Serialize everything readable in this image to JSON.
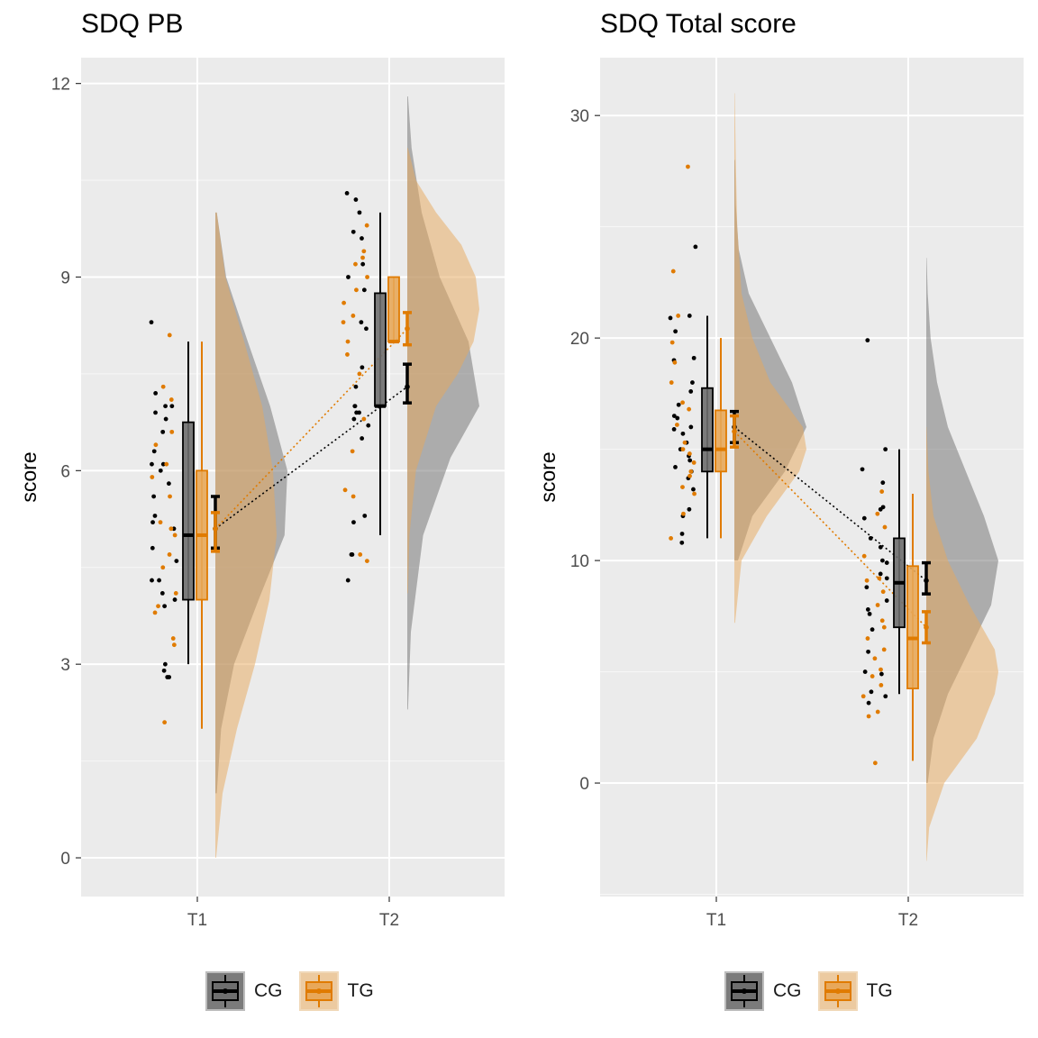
{
  "chart_data": [
    {
      "type": "raincloud",
      "title": "SDQ PB",
      "xlabel": "",
      "ylabel": "score",
      "categories": [
        "T1",
        "T2"
      ],
      "ylim": [
        -0.6,
        12.4
      ],
      "yticks": [
        0,
        3,
        6,
        9,
        12
      ],
      "grid": true,
      "legend_position": "bottom",
      "series": [
        {
          "name": "CG",
          "color": "#000000",
          "fill": "#6e6e6e",
          "points": {
            "T1": [
              8.3,
              7.2,
              7.0,
              7.0,
              6.9,
              6.8,
              6.6,
              6.3,
              6.1,
              6.1,
              6.0,
              5.8,
              5.6,
              5.3,
              5.2,
              5.1,
              4.8,
              4.6,
              4.3,
              4.3,
              4.1,
              4.0,
              3.9,
              3.0,
              2.9,
              2.8,
              2.8
            ],
            "T2": [
              10.3,
              10.2,
              10.0,
              9.7,
              9.6,
              9.2,
              9.0,
              8.8,
              8.3,
              8.2,
              7.6,
              7.3,
              7.0,
              7.0,
              6.9,
              6.9,
              6.8,
              6.7,
              6.5,
              5.3,
              5.2,
              4.7,
              4.7,
              4.3
            ]
          },
          "box": {
            "T1": {
              "lower_whisker": 3.0,
              "q1": 4.0,
              "median": 5.0,
              "q3": 6.75,
              "upper_whisker": 8.0
            },
            "T2": {
              "lower_whisker": 5.0,
              "q1": 7.0,
              "median": 7.0,
              "q3": 8.75,
              "upper_whisker": 10.0
            }
          },
          "mean_ci": {
            "T1": {
              "mean": 5.1,
              "low": 4.8,
              "high": 5.6
            },
            "T2": {
              "mean": 7.3,
              "low": 7.05,
              "high": 7.65
            }
          },
          "density": {
            "T1": {
              "y": [
                1.0,
                2.0,
                3.0,
                4.0,
                5.0,
                6.0,
                7.0,
                8.0,
                9.0,
                10.0
              ],
              "w": [
                0.02,
                0.08,
                0.26,
                0.6,
                0.96,
                1.0,
                0.76,
                0.45,
                0.15,
                0.02
              ]
            },
            "T2": {
              "y": [
                2.3,
                3.5,
                5.0,
                6.2,
                7.0,
                8.0,
                9.0,
                10.0,
                11.0,
                11.8
              ],
              "w": [
                0.01,
                0.05,
                0.22,
                0.6,
                1.0,
                0.85,
                0.45,
                0.2,
                0.06,
                0.01
              ]
            }
          }
        },
        {
          "name": "TG",
          "color": "#e07b00",
          "fill": "#e8a85a",
          "points": {
            "T1": [
              8.1,
              7.3,
              7.1,
              6.6,
              6.4,
              6.1,
              5.9,
              5.6,
              5.2,
              5.1,
              5.0,
              4.7,
              4.5,
              4.1,
              3.9,
              3.8,
              3.4,
              3.3,
              2.1
            ],
            "T2": [
              9.8,
              9.4,
              9.3,
              9.2,
              9.0,
              8.8,
              8.6,
              8.4,
              8.3,
              8.0,
              7.8,
              7.5,
              6.8,
              6.3,
              5.7,
              5.6,
              4.7,
              4.6
            ]
          },
          "box": {
            "T1": {
              "lower_whisker": 2.0,
              "q1": 4.0,
              "median": 5.0,
              "q3": 6.0,
              "upper_whisker": 8.0
            },
            "T2": {
              "lower_whisker": 8.0,
              "q1": 8.0,
              "median": 8.0,
              "q3": 9.0,
              "upper_whisker": 9.0
            }
          },
          "mean_ci": {
            "T1": {
              "mean": 5.1,
              "low": 4.75,
              "high": 5.35
            },
            "T2": {
              "mean": 8.2,
              "low": 7.95,
              "high": 8.45
            }
          },
          "density": {
            "T1": {
              "y": [
                0.0,
                1.0,
                2.0,
                3.0,
                4.0,
                5.0,
                6.0,
                7.0,
                8.0,
                9.0,
                10.0
              ],
              "w": [
                0.01,
                0.1,
                0.3,
                0.55,
                0.75,
                0.85,
                0.8,
                0.65,
                0.4,
                0.14,
                0.02
              ]
            },
            "T2": {
              "y": [
                4.1,
                5.0,
                6.0,
                7.0,
                7.5,
                8.0,
                8.5,
                9.0,
                9.5,
                10.0,
                10.5,
                11.0
              ],
              "w": [
                0.01,
                0.03,
                0.12,
                0.4,
                0.7,
                0.92,
                1.0,
                0.95,
                0.75,
                0.4,
                0.12,
                0.01
              ]
            }
          }
        }
      ]
    },
    {
      "type": "raincloud",
      "title": "SDQ Total score",
      "xlabel": "",
      "ylabel": "score",
      "categories": [
        "T1",
        "T2"
      ],
      "ylim": [
        -5.1,
        32.6
      ],
      "yticks": [
        0,
        10,
        20,
        30
      ],
      "grid": true,
      "legend_position": "bottom",
      "series": [
        {
          "name": "CG",
          "color": "#000000",
          "fill": "#6e6e6e",
          "points": {
            "T1": [
              24.1,
              21.0,
              20.9,
              20.3,
              19.1,
              19.0,
              18.0,
              17.6,
              17.0,
              16.5,
              16.4,
              16.0,
              15.9,
              15.7,
              15.3,
              15.0,
              14.7,
              14.5,
              14.2,
              14.0,
              13.7,
              13.2,
              12.3,
              12.0,
              11.2,
              10.8
            ],
            "T2": [
              19.9,
              15.0,
              14.1,
              13.5,
              12.4,
              12.3,
              11.9,
              11.0,
              10.6,
              10.0,
              9.9,
              9.4,
              9.2,
              8.8,
              8.2,
              7.8,
              7.6,
              6.9,
              5.9,
              5.0,
              4.9,
              4.1,
              3.9,
              3.6
            ]
          },
          "box": {
            "T1": {
              "lower_whisker": 11.0,
              "q1": 14.0,
              "median": 15.0,
              "q3": 17.75,
              "upper_whisker": 21.0
            },
            "T2": {
              "lower_whisker": 4.0,
              "q1": 7.0,
              "median": 9.0,
              "q3": 11.0,
              "upper_whisker": 15.0
            }
          },
          "mean_ci": {
            "T1": {
              "mean": 16.0,
              "low": 15.3,
              "high": 16.7
            },
            "T2": {
              "mean": 9.1,
              "low": 8.5,
              "high": 9.9
            }
          },
          "density": {
            "T1": {
              "y": [
                10.0,
                12.0,
                14.0,
                16.0,
                18.0,
                20.0,
                22.0,
                24.0,
                26.0,
                28.0
              ],
              "w": [
                0.05,
                0.25,
                0.7,
                1.0,
                0.8,
                0.5,
                0.2,
                0.06,
                0.02,
                0.01
              ]
            },
            "T2": {
              "y": [
                0.0,
                2.0,
                4.0,
                6.0,
                8.0,
                10.0,
                12.0,
                14.0,
                16.0,
                18.0,
                20.0,
                22.0,
                23.6
              ],
              "w": [
                0.02,
                0.1,
                0.3,
                0.6,
                0.9,
                1.0,
                0.8,
                0.55,
                0.3,
                0.15,
                0.06,
                0.02,
                0.005
              ]
            }
          }
        },
        {
          "name": "TG",
          "color": "#e07b00",
          "fill": "#e8a85a",
          "points": {
            "T1": [
              27.7,
              23.0,
              21.0,
              19.8,
              18.9,
              18.0,
              17.1,
              16.8,
              16.1,
              15.3,
              15.0,
              14.8,
              14.4,
              14.0,
              13.8,
              13.3,
              13.0,
              12.1,
              11.0
            ],
            "T2": [
              13.1,
              12.1,
              11.5,
              10.2,
              9.2,
              9.1,
              8.6,
              8.0,
              7.3,
              7.0,
              6.5,
              6.0,
              5.6,
              5.1,
              4.8,
              4.4,
              3.9,
              3.2,
              3.0,
              0.9
            ]
          },
          "box": {
            "T1": {
              "lower_whisker": 11.0,
              "q1": 14.0,
              "median": 15.0,
              "q3": 16.75,
              "upper_whisker": 20.0
            },
            "T2": {
              "lower_whisker": 1.0,
              "q1": 4.25,
              "median": 6.5,
              "q3": 9.75,
              "upper_whisker": 13.0
            }
          },
          "mean_ci": {
            "T1": {
              "mean": 15.8,
              "low": 15.1,
              "high": 16.5
            },
            "T2": {
              "mean": 7.0,
              "low": 6.3,
              "high": 7.7
            }
          },
          "density": {
            "T1": {
              "y": [
                7.2,
                10.0,
                12.0,
                14.0,
                15.0,
                16.0,
                18.0,
                20.0,
                22.0,
                25.0,
                28.0,
                31.0
              ],
              "w": [
                0.01,
                0.1,
                0.45,
                0.9,
                1.0,
                0.95,
                0.5,
                0.25,
                0.1,
                0.04,
                0.02,
                0.005
              ]
            },
            "T2": {
              "y": [
                -3.5,
                -2.0,
                0.0,
                2.0,
                4.0,
                5.0,
                6.0,
                8.0,
                10.0,
                12.0,
                14.0,
                16.0
              ],
              "w": [
                0.005,
                0.04,
                0.25,
                0.7,
                0.95,
                1.0,
                0.95,
                0.6,
                0.3,
                0.1,
                0.03,
                0.005
              ]
            }
          }
        }
      ]
    }
  ],
  "legend": {
    "items": [
      {
        "label": "CG",
        "color": "#000000",
        "fill": "#6e6e6e"
      },
      {
        "label": "TG",
        "color": "#e07b00",
        "fill": "#e8a85a"
      }
    ]
  }
}
